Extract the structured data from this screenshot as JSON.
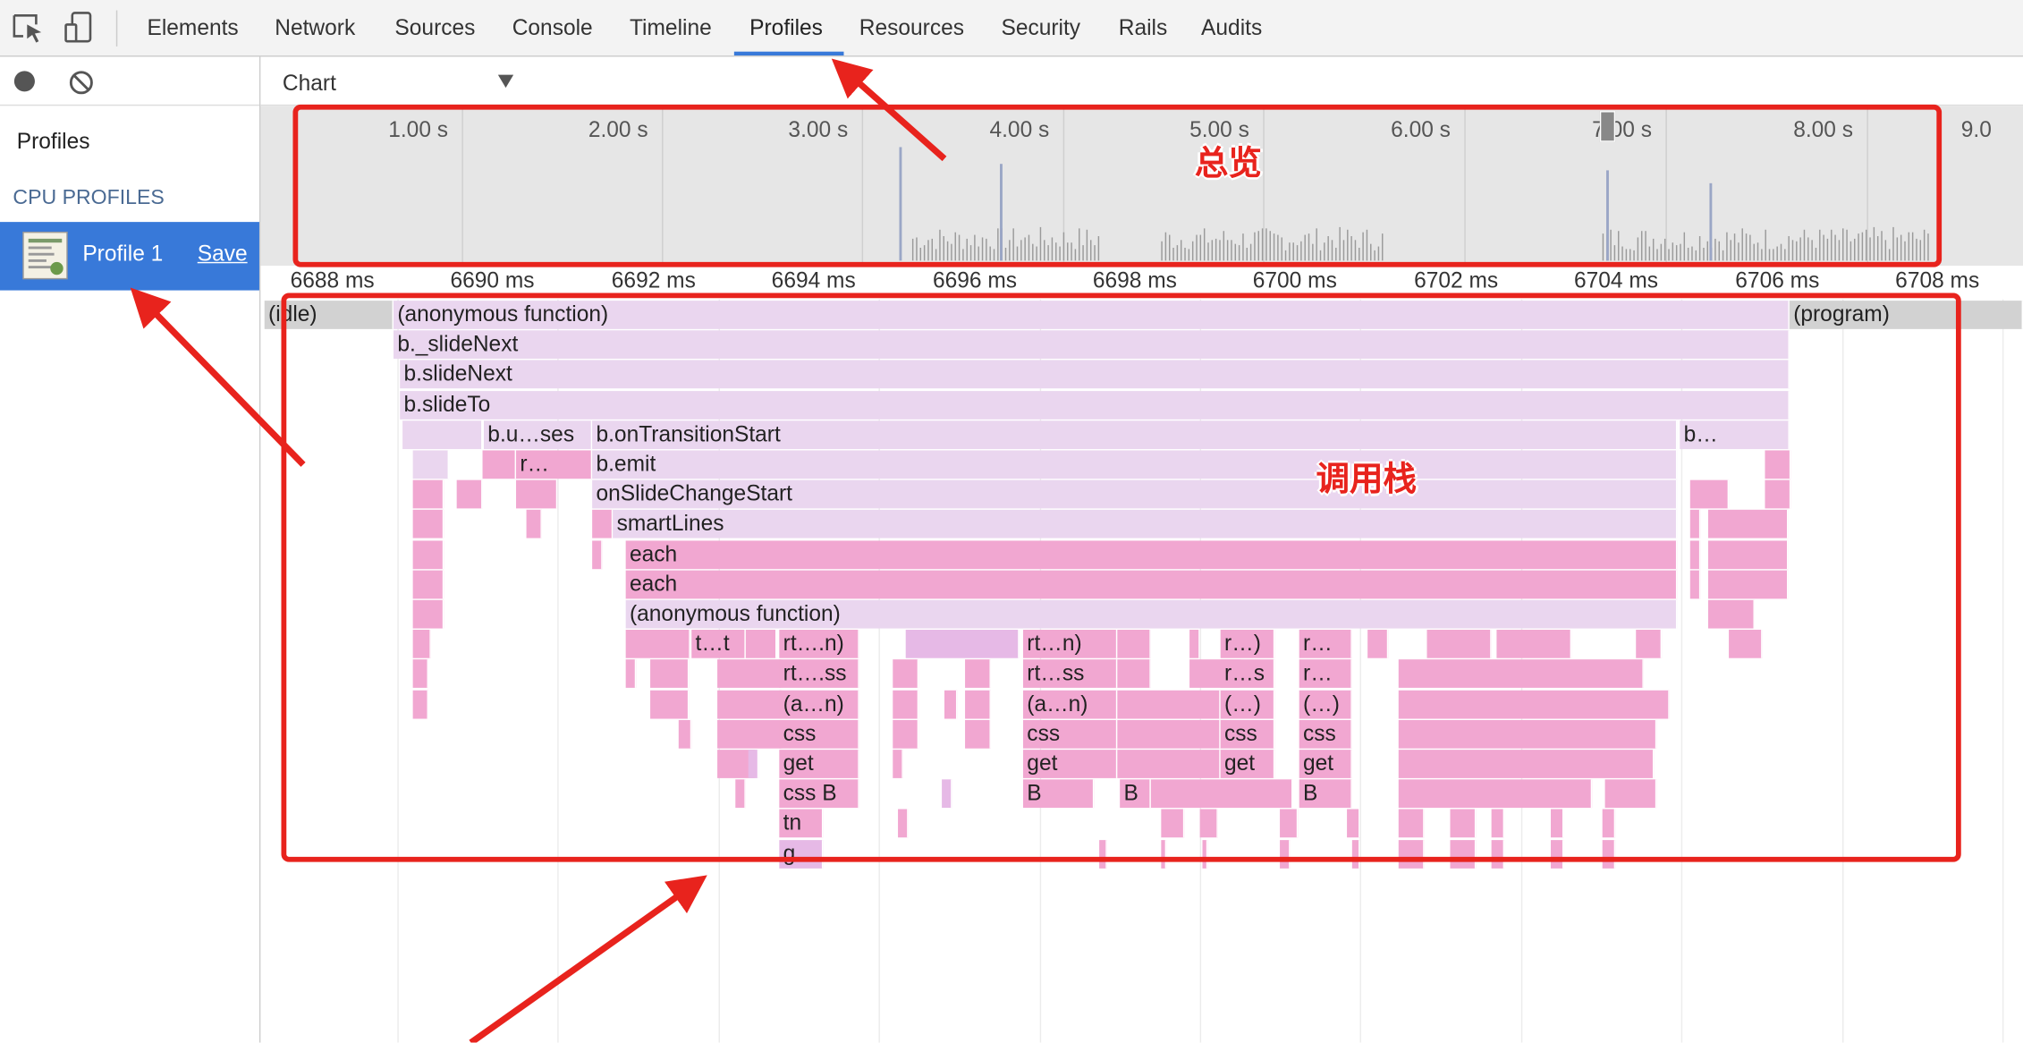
{
  "toolbar": {
    "tabs": [
      "Elements",
      "Network",
      "Sources",
      "Console",
      "Timeline",
      "Profiles",
      "Resources",
      "Security",
      "Rails",
      "Audits"
    ]
  },
  "sidebar": {
    "title": "Profiles",
    "section": "CPU PROFILES",
    "profile": "Profile 1",
    "save": "Save"
  },
  "view_select": "Chart",
  "overview": {
    "ticks": [
      "1.00 s",
      "2.00 s",
      "3.00 s",
      "4.00 s",
      "5.00 s",
      "6.00 s",
      "7.00 s",
      "8.00 s",
      "9.0"
    ]
  },
  "ruler": {
    "ticks": [
      "6688 ms",
      "6690 ms",
      "6692 ms",
      "6694 ms",
      "6696 ms",
      "6698 ms",
      "6700 ms",
      "6702 ms",
      "6704 ms",
      "6706 ms",
      "6708 ms"
    ]
  },
  "flame": {
    "labels": [
      "(idle)",
      "(anonymous function)",
      "(program)",
      "b._slideNext",
      "b.slideNext",
      "b.slideTo",
      "b.u…ses",
      "b.onTransitionStart",
      "b…",
      "r…",
      "b.emit",
      "onSlideChangeStart",
      "smartLines",
      "each",
      "each",
      "(anonymous function)",
      "t…t",
      "rt….n)",
      "rt…n)",
      "r…)",
      "r…",
      "rt….ss",
      "rt…ss",
      "r…s",
      "r…",
      "(a…n)",
      "(a…n)",
      "(…)",
      "(…)",
      "css",
      "css",
      "css",
      "css",
      "get",
      "get",
      "get",
      "get",
      "css B",
      "B",
      "B",
      "B",
      "tn",
      "g"
    ]
  },
  "annotations": {
    "overview": "总览",
    "call_stack": "调用栈"
  }
}
